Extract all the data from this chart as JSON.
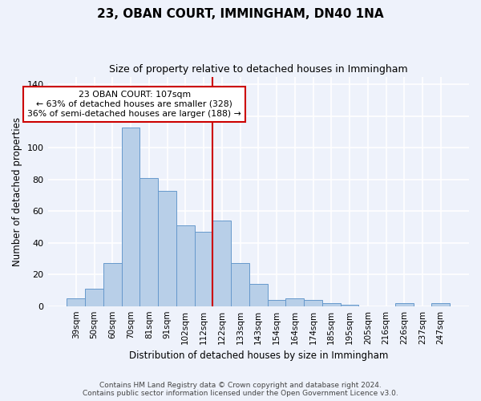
{
  "title": "23, OBAN COURT, IMMINGHAM, DN40 1NA",
  "subtitle": "Size of property relative to detached houses in Immingham",
  "xlabel": "Distribution of detached houses by size in Immingham",
  "ylabel": "Number of detached properties",
  "categories": [
    "39sqm",
    "50sqm",
    "60sqm",
    "70sqm",
    "81sqm",
    "91sqm",
    "102sqm",
    "112sqm",
    "122sqm",
    "133sqm",
    "143sqm",
    "154sqm",
    "164sqm",
    "174sqm",
    "185sqm",
    "195sqm",
    "205sqm",
    "216sqm",
    "226sqm",
    "237sqm",
    "247sqm"
  ],
  "values": [
    5,
    11,
    27,
    113,
    81,
    73,
    51,
    47,
    54,
    27,
    14,
    4,
    5,
    4,
    2,
    1,
    0,
    0,
    2,
    0,
    2
  ],
  "bar_color": "#b8cfe8",
  "bar_edge_color": "#6699cc",
  "vline_color": "#cc0000",
  "vline_x_index": 7.5,
  "annotation_text": "23 OBAN COURT: 107sqm\n← 63% of detached houses are smaller (328)\n36% of semi-detached houses are larger (188) →",
  "annotation_box_color": "#ffffff",
  "annotation_box_edge_color": "#cc0000",
  "ylim": [
    0,
    145
  ],
  "background_color": "#eef2fb",
  "grid_color": "#ffffff",
  "footer_line1": "Contains HM Land Registry data © Crown copyright and database right 2024.",
  "footer_line2": "Contains public sector information licensed under the Open Government Licence v3.0."
}
